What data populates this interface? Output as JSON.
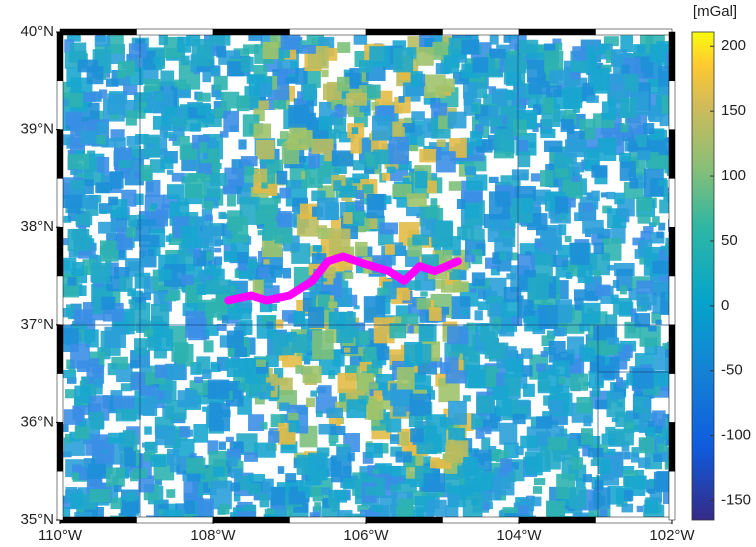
{
  "map": {
    "lonlim": [
      -110,
      -102
    ],
    "latlim": [
      35,
      40
    ],
    "lon_ticks": [
      {
        "value": -110,
        "label": "110°W"
      },
      {
        "value": -108,
        "label": "108°W"
      },
      {
        "value": -106,
        "label": "106°W"
      },
      {
        "value": -104,
        "label": "104°W"
      },
      {
        "value": -102,
        "label": "102°W"
      }
    ],
    "lat_ticks": [
      {
        "value": 35,
        "label": "35°N"
      },
      {
        "value": 36,
        "label": "36°N"
      },
      {
        "value": 37,
        "label": "37°N"
      },
      {
        "value": 38,
        "label": "38°N"
      },
      {
        "value": 39,
        "label": "39°N"
      },
      {
        "value": 40,
        "label": "40°N"
      }
    ],
    "colorbar": {
      "unit": "[mGal]",
      "lim": [
        -165,
        211
      ],
      "ticks": [
        -150,
        -100,
        -50,
        0,
        50,
        100,
        150,
        200
      ]
    },
    "track": {
      "color": "#ff00ff",
      "lon": [
        -107.8,
        -107.5,
        -107.3,
        -107.0,
        -106.7,
        -106.5,
        -106.3,
        -106.0,
        -105.7,
        -105.5,
        -105.3,
        -105.1,
        -104.8
      ],
      "lat": [
        37.25,
        37.3,
        37.25,
        37.3,
        37.45,
        37.65,
        37.7,
        37.62,
        37.55,
        37.45,
        37.6,
        37.55,
        37.65
      ]
    }
  }
}
